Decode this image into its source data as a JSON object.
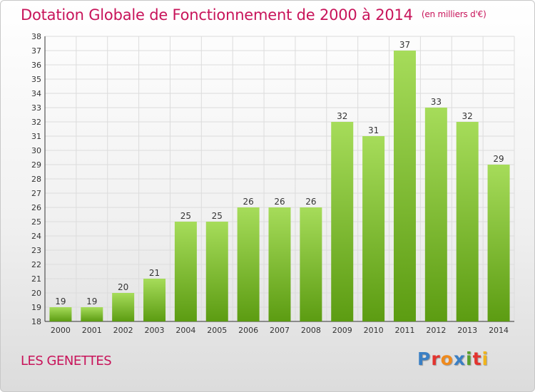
{
  "header": {
    "title": "Dotation Globale de Fonctionnement de 2000 à 2014",
    "unit": "(en milliers d'€)"
  },
  "footer": {
    "commune": "LES GENETTES",
    "logo": "Proxiti",
    "logo_colors": [
      "#3a7fc4",
      "#e3342f",
      "#f08a1c",
      "#3a7fc4",
      "#5aa02c",
      "#e3342f",
      "#f0b41c"
    ]
  },
  "colors": {
    "bar_light": "#a6dc5a",
    "bar_dark": "#5c9c12",
    "grid": "#dcdcdc",
    "title": "#c8145a"
  },
  "chart_data": {
    "type": "bar",
    "categories": [
      "2000",
      "2001",
      "2002",
      "2003",
      "2004",
      "2005",
      "2006",
      "2007",
      "2008",
      "2009",
      "2010",
      "2011",
      "2012",
      "2013",
      "2014"
    ],
    "values": [
      19,
      19,
      20,
      21,
      25,
      25,
      26,
      26,
      26,
      32,
      31,
      37,
      33,
      32,
      29
    ],
    "title": "Dotation Globale de Fonctionnement de 2000 à 2014",
    "xlabel": "",
    "ylabel": "",
    "ylim": [
      18,
      38
    ],
    "yticks": [
      18,
      19,
      20,
      21,
      22,
      23,
      24,
      25,
      26,
      27,
      28,
      29,
      30,
      31,
      32,
      33,
      34,
      35,
      36,
      37,
      38
    ],
    "grid": true,
    "legend": "none"
  }
}
